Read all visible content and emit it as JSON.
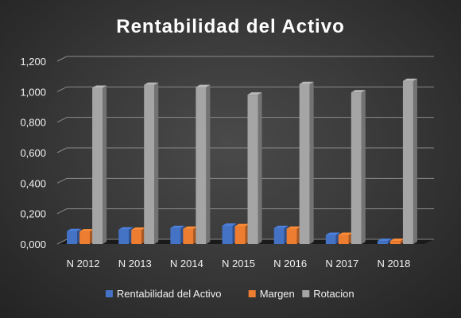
{
  "chart_data": {
    "type": "bar",
    "title": "Rentabilidad del Activo",
    "categories": [
      "N 2012",
      "N 2013",
      "N 2014",
      "N 2015",
      "N 2016",
      "N 2017",
      "N 2018"
    ],
    "series": [
      {
        "name": "Rentabilidad del Activo",
        "values": [
          0.085,
          0.095,
          0.105,
          0.12,
          0.105,
          0.06,
          0.02
        ],
        "color": "#4472C4"
      },
      {
        "name": "Margen",
        "values": [
          0.083,
          0.093,
          0.1,
          0.117,
          0.1,
          0.06,
          0.02
        ],
        "color": "#ED7D31"
      },
      {
        "name": "Rotacion",
        "values": [
          1.025,
          1.045,
          1.03,
          0.98,
          1.05,
          0.995,
          1.07
        ],
        "color": "#A5A5A5"
      }
    ],
    "y_ticks": [
      "0,000",
      "0,200",
      "0,400",
      "0,600",
      "0,800",
      "1,000",
      "1,200"
    ],
    "ylim": [
      0,
      1.2
    ],
    "grid": true,
    "legend_position": "bottom",
    "style": "3d-clustered-column"
  }
}
